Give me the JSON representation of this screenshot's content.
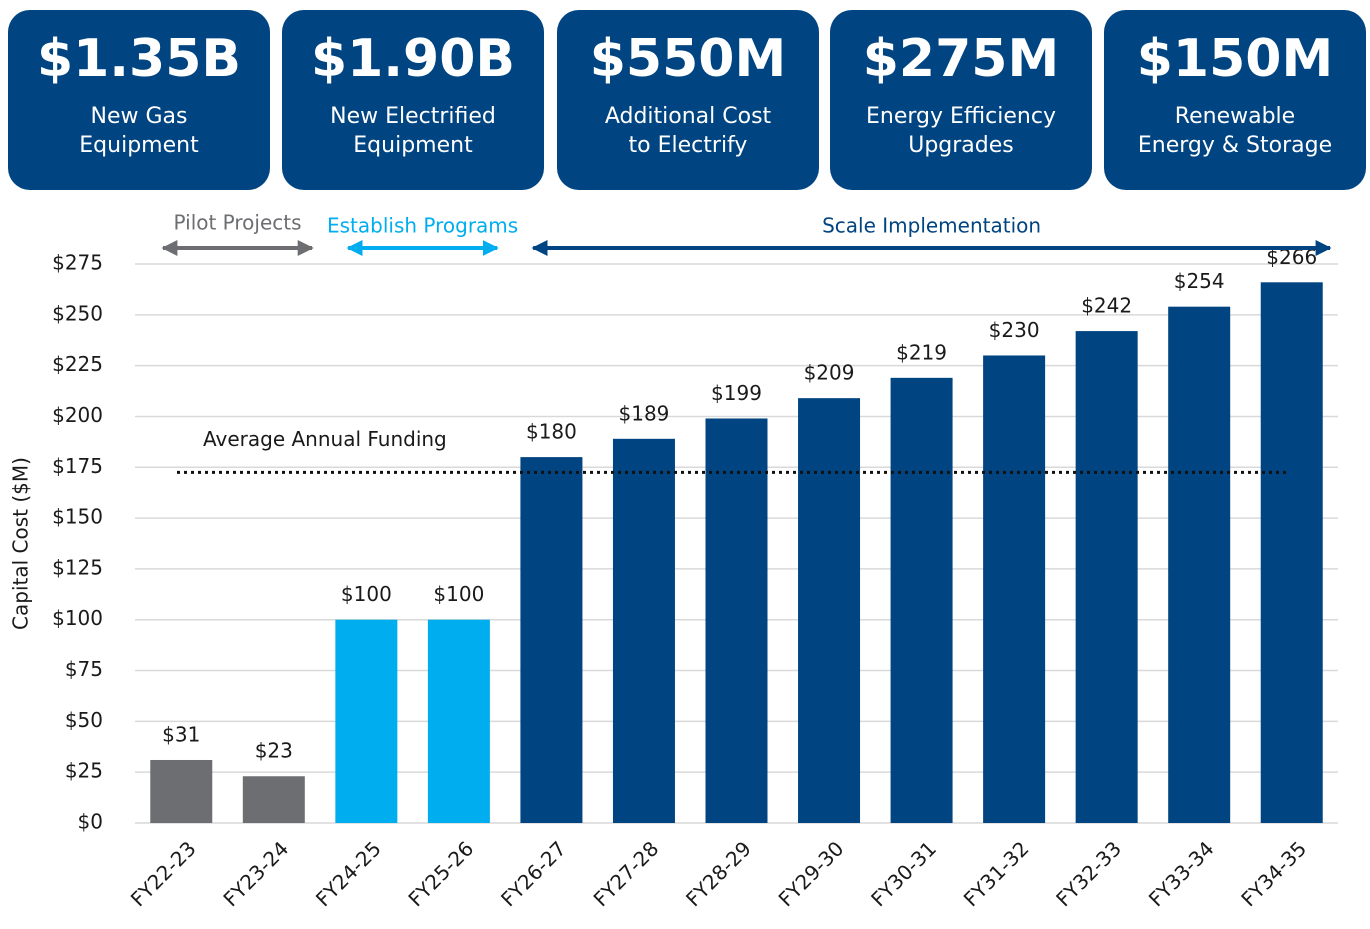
{
  "cards": [
    {
      "value": "$1.35B",
      "label": [
        "New Gas",
        "Equipment"
      ]
    },
    {
      "value": "$1.90B",
      "label": [
        "New Electrified",
        "Equipment"
      ]
    },
    {
      "value": "$550M",
      "label": [
        "Additional Cost",
        "to Electrify"
      ]
    },
    {
      "value": "$275M",
      "label": [
        "Energy Efficiency",
        "Upgrades"
      ]
    },
    {
      "value": "$150M",
      "label": [
        "Renewable",
        "Energy & Storage"
      ]
    }
  ],
  "chart_data": {
    "type": "bar",
    "y_label": "Capital Cost ($M)",
    "categories": [
      "FY22-23",
      "FY23-24",
      "FY24-25",
      "FY25-26",
      "FY26-27",
      "FY27-28",
      "FY28-29",
      "FY29-30",
      "FY30-31",
      "FY31-32",
      "FY32-33",
      "FY33-34",
      "FY34-35"
    ],
    "series": [
      {
        "name": "Pilot Projects",
        "color": "#6d6e71",
        "values": [
          31,
          23,
          null,
          null,
          null,
          null,
          null,
          null,
          null,
          null,
          null,
          null,
          null
        ],
        "value_labels": [
          "$31",
          "$23",
          null,
          null,
          null,
          null,
          null,
          null,
          null,
          null,
          null,
          null,
          null
        ]
      },
      {
        "name": "Establish Programs",
        "color": "#00aeef",
        "values": [
          null,
          null,
          100,
          100,
          null,
          null,
          null,
          null,
          null,
          null,
          null,
          null,
          null
        ],
        "value_labels": [
          null,
          null,
          "$100",
          "$100",
          null,
          null,
          null,
          null,
          null,
          null,
          null,
          null,
          null
        ]
      },
      {
        "name": "Scale Implementation",
        "color": "#004481",
        "values": [
          null,
          null,
          null,
          null,
          180,
          189,
          199,
          209,
          219,
          230,
          242,
          254,
          266
        ],
        "value_labels": [
          null,
          null,
          null,
          null,
          "$180",
          "$189",
          "$199",
          "$209",
          "$219",
          "$230",
          "$242",
          "$254",
          "$266"
        ]
      }
    ],
    "average": {
      "label": "Average Annual Funding",
      "value": 172.5
    },
    "ylim": [
      0,
      275
    ],
    "yticks": [
      {
        "value": 0,
        "label": "$0"
      },
      {
        "value": 25,
        "label": "$25"
      },
      {
        "value": 50,
        "label": "$50"
      },
      {
        "value": 75,
        "label": "$75"
      },
      {
        "value": 100,
        "label": "$100"
      },
      {
        "value": 125,
        "label": "$125"
      },
      {
        "value": 150,
        "label": "$150"
      },
      {
        "value": 175,
        "label": "$175"
      },
      {
        "value": 200,
        "label": "$200"
      },
      {
        "value": 225,
        "label": "$225"
      },
      {
        "value": 250,
        "label": "$250"
      },
      {
        "value": 275,
        "label": "$275"
      }
    ],
    "grid": true
  }
}
